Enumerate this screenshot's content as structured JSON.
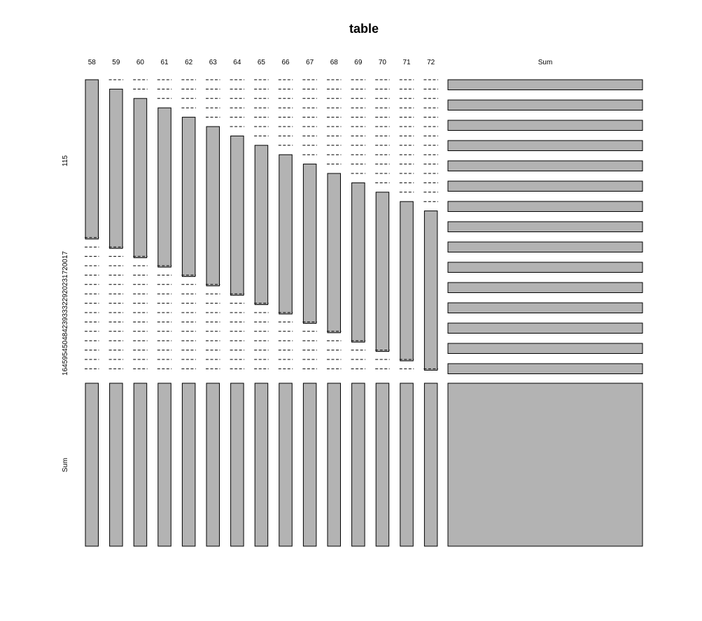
{
  "chart_data": {
    "type": "mosaic",
    "title": "table",
    "col_labels": [
      "58",
      "59",
      "60",
      "61",
      "62",
      "63",
      "64",
      "65",
      "66",
      "67",
      "68",
      "69",
      "70",
      "71",
      "72",
      "Sum"
    ],
    "row_labels_top": "115",
    "row_labels_middle": "16459545048423933322920231720017",
    "row_label_sum": "Sum",
    "diagonal_blocks": [
      {
        "col": "58",
        "row_start": 0,
        "row_end": 17
      },
      {
        "col": "59",
        "row_start": 1,
        "row_end": 18
      },
      {
        "col": "60",
        "row_start": 2,
        "row_end": 19
      },
      {
        "col": "61",
        "row_start": 3,
        "row_end": 20
      },
      {
        "col": "62",
        "row_start": 4,
        "row_end": 21
      },
      {
        "col": "63",
        "row_start": 5,
        "row_end": 22
      },
      {
        "col": "64",
        "row_start": 6,
        "row_end": 23
      },
      {
        "col": "65",
        "row_start": 7,
        "row_end": 24
      },
      {
        "col": "66",
        "row_start": 8,
        "row_end": 25
      },
      {
        "col": "67",
        "row_start": 9,
        "row_end": 26
      },
      {
        "col": "68",
        "row_start": 10,
        "row_end": 27
      },
      {
        "col": "69",
        "row_start": 11,
        "row_end": 28
      },
      {
        "col": "70",
        "row_start": 12,
        "row_end": 29
      },
      {
        "col": "71",
        "row_start": 13,
        "row_end": 30
      },
      {
        "col": "72",
        "row_start": 14,
        "row_end": 31
      }
    ],
    "sum_column_rows": 15,
    "fill_color": "#b3b3b3",
    "stroke_color": "#000000"
  }
}
